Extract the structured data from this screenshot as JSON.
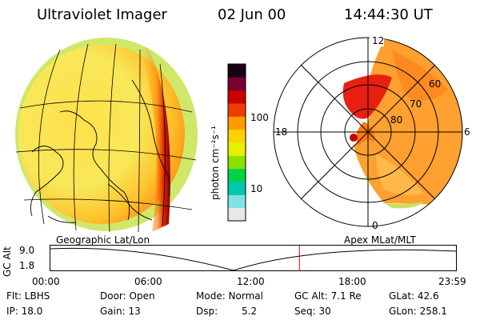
{
  "header": {
    "instrument": "Ultraviolet Imager",
    "date": "02 Jun 00",
    "time": "14:44:30 UT"
  },
  "colorbar": {
    "label": "photon cm⁻²s⁻¹",
    "ticks": [
      "100",
      "10"
    ],
    "scale": "log",
    "colors": [
      "#e8e8e8",
      "#7fe3e3",
      "#00c7b0",
      "#00d24a",
      "#8ce000",
      "#e6f000",
      "#ffd200",
      "#ff9a00",
      "#f03c00",
      "#c80000",
      "#7a0030",
      "#1a0010"
    ]
  },
  "polar_plot": {
    "labels": {
      "top": "12",
      "left": "18",
      "right": "6",
      "bottom": "0",
      "rings": [
        "60",
        "70",
        "80"
      ]
    }
  },
  "panels": {
    "left_caption": "Geographic Lat/Lon",
    "right_caption": "Apex MLat/MLT"
  },
  "altitude_plot": {
    "axis_title": "GC Alt",
    "y_ticks": [
      "9.0",
      "1.8"
    ],
    "x_ticks": [
      "00:00",
      "06:00",
      "12:00",
      "18:00",
      "23:59"
    ],
    "marker_time": "14:44",
    "marker_color": "#e00000"
  },
  "info": {
    "flt": "Flt: LBHS",
    "ip": "IP: 18.0",
    "door": "Door: Open",
    "gain": "Gain: 13",
    "mode": "Mode: Normal",
    "dsp_label": "Dsp:",
    "dsp_value": "5.2",
    "gcalt": "GC Alt: 7.1 Re",
    "seq": "Seq: 30",
    "glat": "GLat:  42.6",
    "glon": "GLon: 258.1"
  }
}
